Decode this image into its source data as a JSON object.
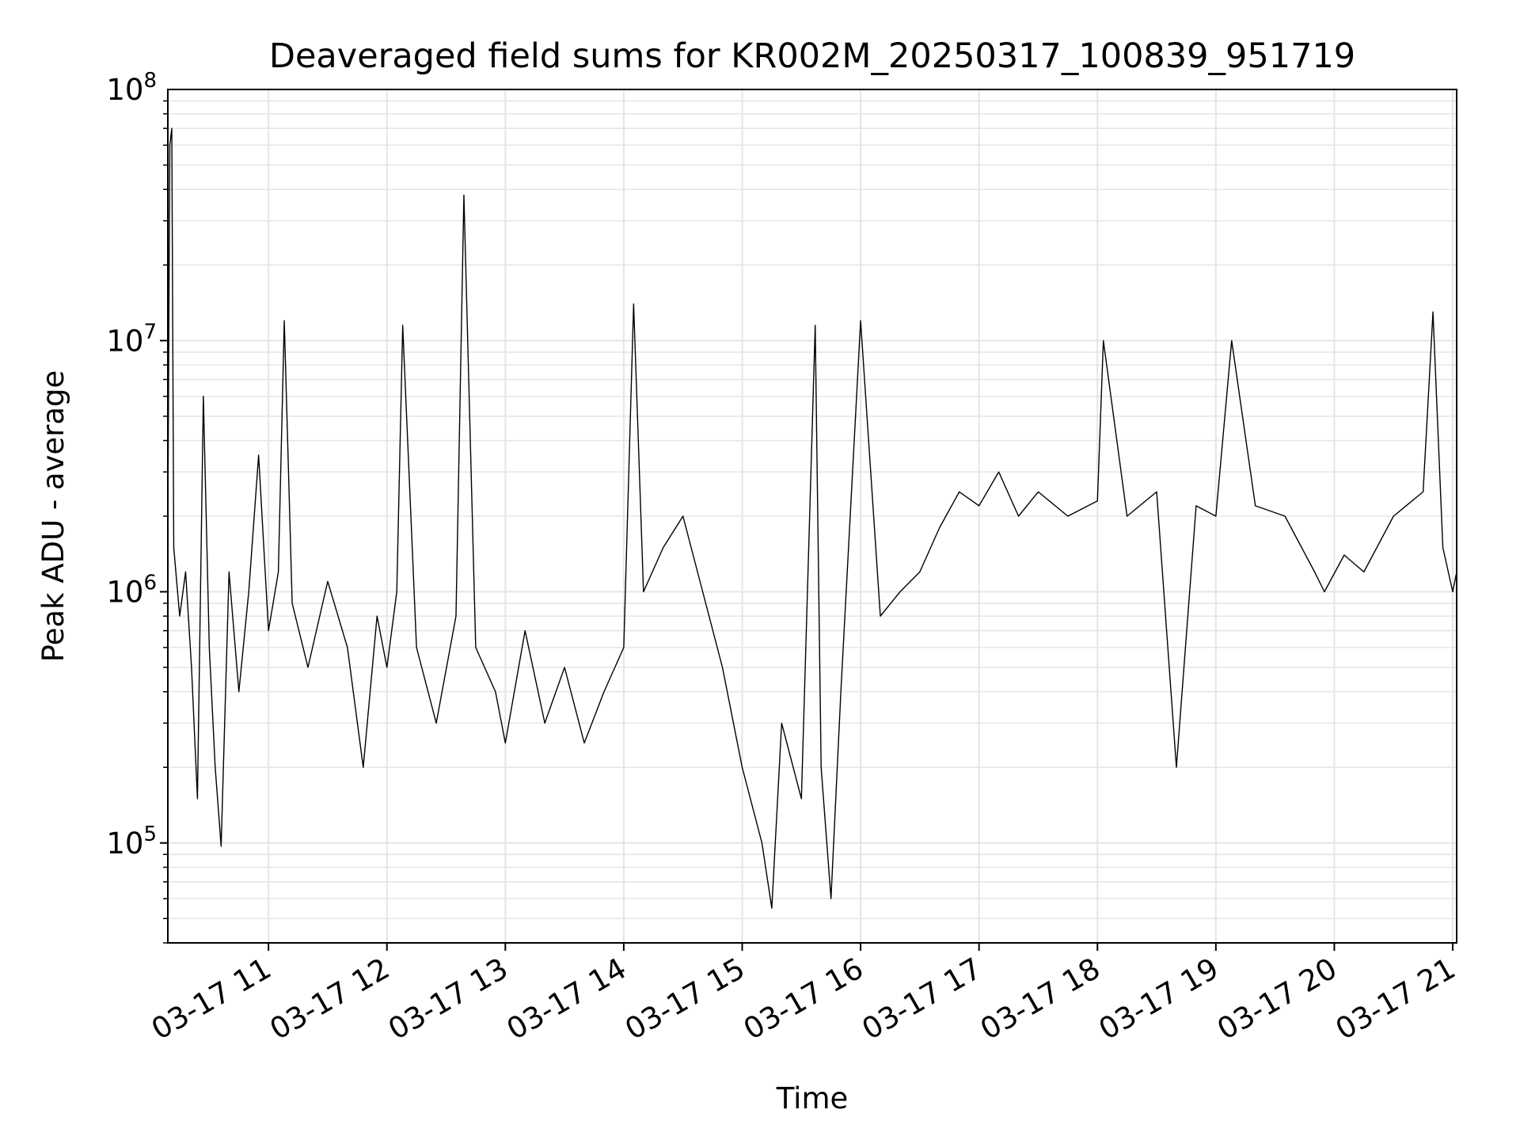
{
  "chart_data": {
    "type": "line",
    "title": "Deaveraged field sums for KR002M_20250317_100839_951719",
    "xlabel": "Time",
    "ylabel": "Peak ADU - average",
    "yscale": "log",
    "ylim": [
      40000,
      100000000
    ],
    "xlim": [
      "2025-03-17 10:09",
      "2025-03-17 21:02"
    ],
    "grid": true,
    "line_color": "#000000",
    "x_ticks": [
      {
        "value": "2025-03-17 11:00",
        "label": "03-17 11"
      },
      {
        "value": "2025-03-17 12:00",
        "label": "03-17 12"
      },
      {
        "value": "2025-03-17 13:00",
        "label": "03-17 13"
      },
      {
        "value": "2025-03-17 14:00",
        "label": "03-17 14"
      },
      {
        "value": "2025-03-17 15:00",
        "label": "03-17 15"
      },
      {
        "value": "2025-03-17 16:00",
        "label": "03-17 16"
      },
      {
        "value": "2025-03-17 17:00",
        "label": "03-17 17"
      },
      {
        "value": "2025-03-17 18:00",
        "label": "03-17 18"
      },
      {
        "value": "2025-03-17 19:00",
        "label": "03-17 19"
      },
      {
        "value": "2025-03-17 20:00",
        "label": "03-17 20"
      },
      {
        "value": "2025-03-17 21:00",
        "label": "03-17 21"
      }
    ],
    "y_ticks": [
      {
        "value": 100000,
        "base": "10",
        "exp": "5"
      },
      {
        "value": 1000000,
        "base": "10",
        "exp": "6"
      },
      {
        "value": 10000000,
        "base": "10",
        "exp": "7"
      },
      {
        "value": 100000000,
        "base": "10",
        "exp": "8"
      }
    ],
    "series": [
      {
        "points": [
          [
            "2025-03-17 10:09",
            1800000
          ],
          [
            "2025-03-17 10:10",
            60000000
          ],
          [
            "2025-03-17 10:11",
            70000000
          ],
          [
            "2025-03-17 10:12",
            1500000
          ],
          [
            "2025-03-17 10:15",
            800000
          ],
          [
            "2025-03-17 10:18",
            1200000
          ],
          [
            "2025-03-17 10:21",
            500000
          ],
          [
            "2025-03-17 10:24",
            150000
          ],
          [
            "2025-03-17 10:27",
            6000000
          ],
          [
            "2025-03-17 10:30",
            600000
          ],
          [
            "2025-03-17 10:33",
            200000
          ],
          [
            "2025-03-17 10:36",
            97000
          ],
          [
            "2025-03-17 10:40",
            1200000
          ],
          [
            "2025-03-17 10:45",
            400000
          ],
          [
            "2025-03-17 10:50",
            1000000
          ],
          [
            "2025-03-17 10:55",
            3500000
          ],
          [
            "2025-03-17 11:00",
            700000
          ],
          [
            "2025-03-17 11:05",
            1200000
          ],
          [
            "2025-03-17 11:08",
            12000000
          ],
          [
            "2025-03-17 11:12",
            900000
          ],
          [
            "2025-03-17 11:20",
            500000
          ],
          [
            "2025-03-17 11:30",
            1100000
          ],
          [
            "2025-03-17 11:40",
            600000
          ],
          [
            "2025-03-17 11:48",
            200000
          ],
          [
            "2025-03-17 11:55",
            800000
          ],
          [
            "2025-03-17 12:00",
            500000
          ],
          [
            "2025-03-17 12:05",
            1000000
          ],
          [
            "2025-03-17 12:08",
            11500000
          ],
          [
            "2025-03-17 12:15",
            600000
          ],
          [
            "2025-03-17 12:25",
            300000
          ],
          [
            "2025-03-17 12:35",
            800000
          ],
          [
            "2025-03-17 12:39",
            38000000
          ],
          [
            "2025-03-17 12:45",
            600000
          ],
          [
            "2025-03-17 12:55",
            400000
          ],
          [
            "2025-03-17 13:00",
            250000
          ],
          [
            "2025-03-17 13:10",
            700000
          ],
          [
            "2025-03-17 13:20",
            300000
          ],
          [
            "2025-03-17 13:30",
            500000
          ],
          [
            "2025-03-17 13:40",
            250000
          ],
          [
            "2025-03-17 13:50",
            400000
          ],
          [
            "2025-03-17 14:00",
            600000
          ],
          [
            "2025-03-17 14:05",
            14000000
          ],
          [
            "2025-03-17 14:10",
            1000000
          ],
          [
            "2025-03-17 14:20",
            1500000
          ],
          [
            "2025-03-17 14:30",
            2000000
          ],
          [
            "2025-03-17 14:40",
            1000000
          ],
          [
            "2025-03-17 14:50",
            500000
          ],
          [
            "2025-03-17 15:00",
            200000
          ],
          [
            "2025-03-17 15:10",
            100000
          ],
          [
            "2025-03-17 15:15",
            55000
          ],
          [
            "2025-03-17 15:20",
            300000
          ],
          [
            "2025-03-17 15:30",
            150000
          ],
          [
            "2025-03-17 15:37",
            11500000
          ],
          [
            "2025-03-17 15:40",
            200000
          ],
          [
            "2025-03-17 15:45",
            60000
          ],
          [
            "2025-03-17 15:50",
            400000
          ],
          [
            "2025-03-17 16:00",
            12000000
          ],
          [
            "2025-03-17 16:10",
            800000
          ],
          [
            "2025-03-17 16:20",
            1000000
          ],
          [
            "2025-03-17 16:30",
            1200000
          ],
          [
            "2025-03-17 16:40",
            1800000
          ],
          [
            "2025-03-17 16:50",
            2500000
          ],
          [
            "2025-03-17 17:00",
            2200000
          ],
          [
            "2025-03-17 17:10",
            3000000
          ],
          [
            "2025-03-17 17:20",
            2000000
          ],
          [
            "2025-03-17 17:30",
            2500000
          ],
          [
            "2025-03-17 17:45",
            2000000
          ],
          [
            "2025-03-17 18:00",
            2300000
          ],
          [
            "2025-03-17 18:03",
            10000000
          ],
          [
            "2025-03-17 18:15",
            2000000
          ],
          [
            "2025-03-17 18:30",
            2500000
          ],
          [
            "2025-03-17 18:40",
            200000
          ],
          [
            "2025-03-17 18:50",
            2200000
          ],
          [
            "2025-03-17 19:00",
            2000000
          ],
          [
            "2025-03-17 19:08",
            10000000
          ],
          [
            "2025-03-17 19:20",
            2200000
          ],
          [
            "2025-03-17 19:35",
            2000000
          ],
          [
            "2025-03-17 19:50",
            1200000
          ],
          [
            "2025-03-17 19:55",
            1000000
          ],
          [
            "2025-03-17 20:05",
            1400000
          ],
          [
            "2025-03-17 20:15",
            1200000
          ],
          [
            "2025-03-17 20:30",
            2000000
          ],
          [
            "2025-03-17 20:45",
            2500000
          ],
          [
            "2025-03-17 20:50",
            13000000
          ],
          [
            "2025-03-17 20:55",
            1500000
          ],
          [
            "2025-03-17 21:00",
            1000000
          ],
          [
            "2025-03-17 21:02",
            1200000
          ]
        ]
      }
    ]
  }
}
